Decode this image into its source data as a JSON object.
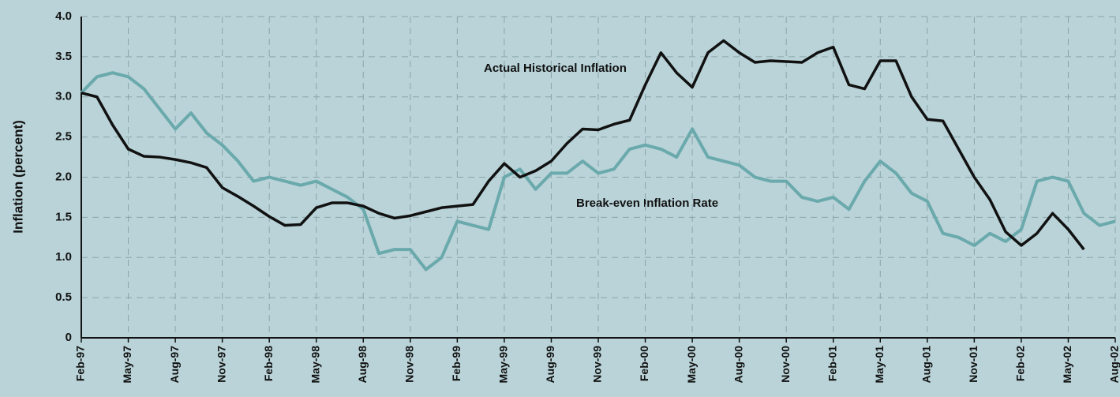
{
  "chart_data": {
    "type": "line",
    "ylabel": "Inflation (percent)",
    "annotations": [
      "Actual Historical Inflation",
      "Break-even Inflation Rate"
    ],
    "categories": [
      "Feb-97",
      null,
      null,
      "May-97",
      null,
      null,
      "Aug-97",
      null,
      null,
      "Nov-97",
      null,
      null,
      "Feb-98",
      null,
      null,
      "May-98",
      null,
      null,
      "Aug-98",
      null,
      null,
      "Nov-98",
      null,
      null,
      "Feb-99",
      null,
      null,
      "May-99",
      null,
      null,
      "Aug-99",
      null,
      null,
      "Nov-99",
      null,
      null,
      "Feb-00",
      null,
      null,
      "May-00",
      null,
      null,
      "Aug-00",
      null,
      null,
      "Nov-00",
      null,
      null,
      "Feb-01",
      null,
      null,
      "May-01",
      null,
      null,
      "Aug-01",
      null,
      null,
      "Nov-01",
      null,
      null,
      "Feb-02",
      null,
      null,
      "May-02",
      null,
      null,
      "Aug-02"
    ],
    "series": [
      {
        "name": "Actual Historical Inflation",
        "color": "#111111",
        "values": [
          3.05,
          3.0,
          2.65,
          2.35,
          2.26,
          2.25,
          2.22,
          2.18,
          2.12,
          1.87,
          1.76,
          1.64,
          1.51,
          1.4,
          1.41,
          1.62,
          1.68,
          1.68,
          1.64,
          1.55,
          1.49,
          1.52,
          1.57,
          1.62,
          1.64,
          1.66,
          1.95,
          2.17,
          2.0,
          2.08,
          2.2,
          2.42,
          2.6,
          2.59,
          2.66,
          2.71,
          3.15,
          3.55,
          3.3,
          3.12,
          3.55,
          3.7,
          3.55,
          3.43,
          3.45,
          3.44,
          3.43,
          3.55,
          3.62,
          3.15,
          3.1,
          3.45,
          3.45,
          3.0,
          2.72,
          2.7,
          2.35,
          2.0,
          1.72,
          1.32,
          1.15,
          1.3,
          1.55,
          1.35,
          1.1,
          null,
          null
        ]
      },
      {
        "name": "Break-even Inflation Rate",
        "color": "#6aa9ac",
        "values": [
          3.05,
          3.25,
          3.3,
          3.25,
          3.1,
          2.85,
          2.6,
          2.8,
          2.55,
          2.4,
          2.2,
          1.95,
          2.0,
          1.95,
          1.9,
          1.95,
          1.85,
          1.75,
          1.6,
          1.05,
          1.1,
          1.1,
          0.85,
          1.0,
          1.45,
          1.4,
          1.35,
          2.0,
          2.1,
          1.85,
          2.05,
          2.05,
          2.2,
          2.05,
          2.1,
          2.35,
          2.4,
          2.35,
          2.25,
          2.6,
          2.25,
          2.2,
          2.15,
          2.0,
          1.95,
          1.95,
          1.75,
          1.7,
          1.75,
          1.6,
          1.95,
          2.2,
          2.05,
          1.8,
          1.7,
          1.3,
          1.25,
          1.15,
          1.3,
          1.2,
          1.35,
          1.95,
          2.0,
          1.95,
          1.55,
          1.4,
          1.45
        ]
      }
    ],
    "ylim": [
      0,
      4
    ],
    "yticks": [
      0,
      0.5,
      {
        "value": 1,
        "label": "1.0"
      },
      1.5,
      {
        "value": 2,
        "label": "2.0"
      },
      2.5,
      {
        "value": 3,
        "label": "3.0"
      },
      3.5,
      {
        "value": 4,
        "label": "4.0"
      }
    ],
    "grid": true
  }
}
